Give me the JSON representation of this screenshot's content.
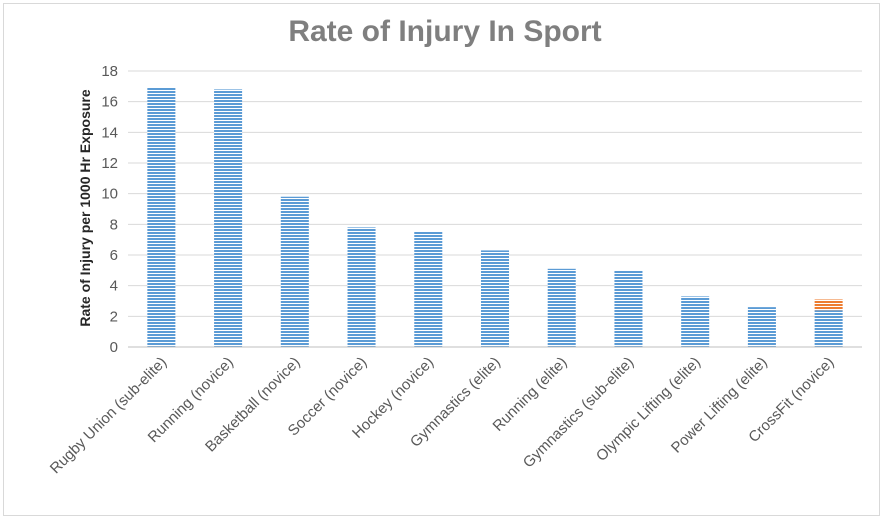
{
  "chart_data": {
    "type": "bar",
    "title": "Rate of Injury In Sport",
    "xlabel": "",
    "ylabel": "Rate of Injury per 1000 Hr Exposure",
    "ylim": [
      0,
      18
    ],
    "yticks": [
      0,
      2,
      4,
      6,
      8,
      10,
      12,
      14,
      16,
      18
    ],
    "grid": true,
    "categories": [
      "Rugby Union (sub-elite)",
      "Running (novice)",
      "Basketball (novice)",
      "Soccer (novice)",
      "Hockey (novice)",
      "Gymnastics (elite)",
      "Running (elite)",
      "Gymnastics (sub-elite)",
      "Olympic Lifting (elite)",
      "Power Lifting (elite)",
      "CrossFit (novice)"
    ],
    "values": [
      16.9,
      16.8,
      9.8,
      7.8,
      7.5,
      6.3,
      5.1,
      5.0,
      3.3,
      2.6,
      2.4
    ],
    "stack_top": [
      0,
      0,
      0,
      0,
      0,
      0,
      0,
      0,
      0,
      0,
      0.7
    ],
    "colors": {
      "bar": "#5b9bd5",
      "stack_top": "#ed7d31",
      "grid": "#d9d9d9",
      "axis": "#bfbfbf"
    }
  }
}
